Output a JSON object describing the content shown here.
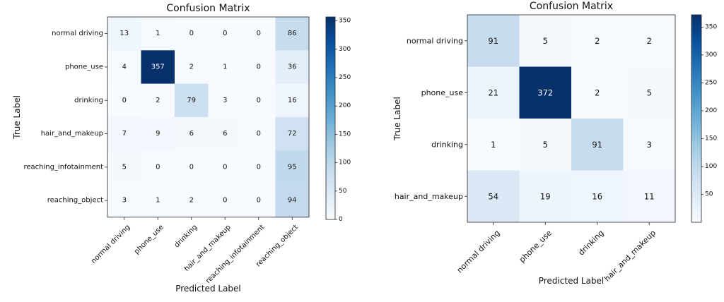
{
  "chart_data": [
    {
      "type": "heatmap",
      "title": "Confusion Matrix",
      "xlabel": "Predicted Label",
      "ylabel": "True Label",
      "x_categories": [
        "normal driving",
        "phone_use",
        "drinking",
        "hair_and_makeup",
        "reaching_infotainment",
        "reaching_object"
      ],
      "y_categories": [
        "normal driving",
        "phone_use",
        "drinking",
        "hair_and_makeup",
        "reaching_infotainment",
        "reaching_object"
      ],
      "values": [
        [
          13,
          1,
          0,
          0,
          0,
          86
        ],
        [
          4,
          357,
          2,
          1,
          0,
          36
        ],
        [
          0,
          2,
          79,
          3,
          0,
          16
        ],
        [
          7,
          9,
          6,
          6,
          0,
          72
        ],
        [
          5,
          0,
          0,
          0,
          0,
          95
        ],
        [
          3,
          1,
          2,
          0,
          0,
          94
        ]
      ],
      "colorbar": {
        "range": [
          0,
          357
        ],
        "ticks": [
          0,
          50,
          100,
          150,
          200,
          250,
          300,
          350
        ]
      },
      "colormap": [
        "#f7fbff",
        "#deebf7",
        "#c6dbef",
        "#9ecae1",
        "#6baed6",
        "#4292c6",
        "#2171b5",
        "#08519c",
        "#08306b"
      ]
    },
    {
      "type": "heatmap",
      "title": "Confusion Matrix",
      "xlabel": "Predicted Label",
      "ylabel": "True Label",
      "x_categories": [
        "normal driving",
        "phone_use",
        "drinking",
        "hair_and_makeup"
      ],
      "y_categories": [
        "normal driving",
        "phone_use",
        "drinking",
        "hair_and_makeup"
      ],
      "values": [
        [
          91,
          5,
          2,
          2
        ],
        [
          21,
          372,
          2,
          5
        ],
        [
          1,
          5,
          91,
          3
        ],
        [
          54,
          19,
          16,
          11
        ]
      ],
      "colorbar": {
        "range": [
          0,
          372
        ],
        "ticks": [
          50,
          100,
          150,
          200,
          250,
          300,
          350
        ]
      },
      "colormap": [
        "#f7fbff",
        "#deebf7",
        "#c6dbef",
        "#9ecae1",
        "#6baed6",
        "#4292c6",
        "#2171b5",
        "#08519c",
        "#08306b"
      ]
    }
  ]
}
